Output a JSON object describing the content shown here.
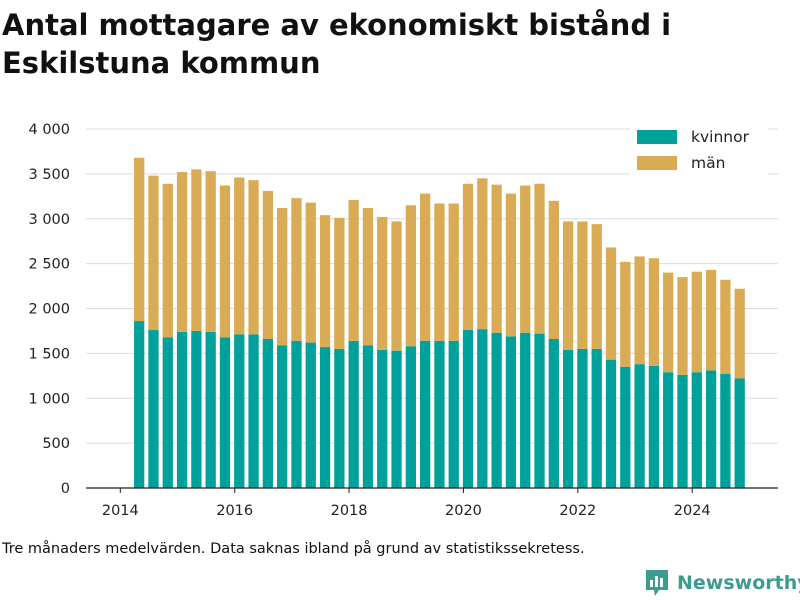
{
  "title": "Antal mottagare av ekonomiskt bistånd i Eskilstuna kommun",
  "note": "Tre månaders medelvärden. Data saknas ibland på grund av statistikssekretess.",
  "brand": {
    "name": "Newsworthy",
    "icon": "newsworthy-logo-icon",
    "color": "#3d9b8f"
  },
  "chart_data": {
    "type": "bar",
    "stacked": true,
    "xlim": [
      2013.4,
      2025.5
    ],
    "x_ticks": [
      2014,
      2016,
      2018,
      2020,
      2022,
      2024
    ],
    "x_tick_labels": [
      "2014",
      "2016",
      "2018",
      "2020",
      "2022",
      "2024"
    ],
    "ylim": [
      0,
      4000
    ],
    "y_ticks": [
      0,
      500,
      1000,
      1500,
      2000,
      2500,
      3000,
      3500,
      4000
    ],
    "y_tick_labels": [
      "0",
      "500",
      "1 000",
      "1 500",
      "2 000",
      "2 500",
      "3 000",
      "3 500",
      "4 000"
    ],
    "grid": true,
    "legend_position": "top-right",
    "x": [
      2014.33,
      2014.58,
      2014.83,
      2015.08,
      2015.33,
      2015.58,
      2015.83,
      2016.08,
      2016.33,
      2016.58,
      2016.83,
      2017.08,
      2017.33,
      2017.58,
      2017.83,
      2018.08,
      2018.33,
      2018.58,
      2018.83,
      2019.08,
      2019.33,
      2019.58,
      2019.83,
      2020.08,
      2020.33,
      2020.58,
      2020.83,
      2021.08,
      2021.33,
      2021.58,
      2021.83,
      2022.08,
      2022.33,
      2022.58,
      2022.83,
      2023.08,
      2023.33,
      2023.58,
      2023.83,
      2024.08,
      2024.33,
      2024.58,
      2024.83
    ],
    "series": [
      {
        "name": "kvinnor",
        "color": "#00a19a",
        "values": [
          1860,
          1760,
          1680,
          1740,
          1750,
          1740,
          1680,
          1710,
          1710,
          1660,
          1590,
          1640,
          1620,
          1570,
          1550,
          1640,
          1590,
          1540,
          1530,
          1580,
          1640,
          1640,
          1640,
          1760,
          1770,
          1730,
          1690,
          1730,
          1720,
          1660,
          1540,
          1550,
          1550,
          1430,
          1350,
          1380,
          1360,
          1290,
          1260,
          1290,
          1310,
          1270,
          1220
        ]
      },
      {
        "name": "män",
        "color": "#d9ab54",
        "values": [
          1820,
          1720,
          1710,
          1780,
          1800,
          1790,
          1690,
          1750,
          1720,
          1650,
          1530,
          1590,
          1560,
          1470,
          1460,
          1570,
          1530,
          1480,
          1440,
          1570,
          1640,
          1530,
          1530,
          1630,
          1680,
          1650,
          1590,
          1640,
          1670,
          1540,
          1430,
          1420,
          1390,
          1250,
          1170,
          1200,
          1200,
          1110,
          1090,
          1120,
          1120,
          1050,
          1000
        ]
      }
    ]
  }
}
